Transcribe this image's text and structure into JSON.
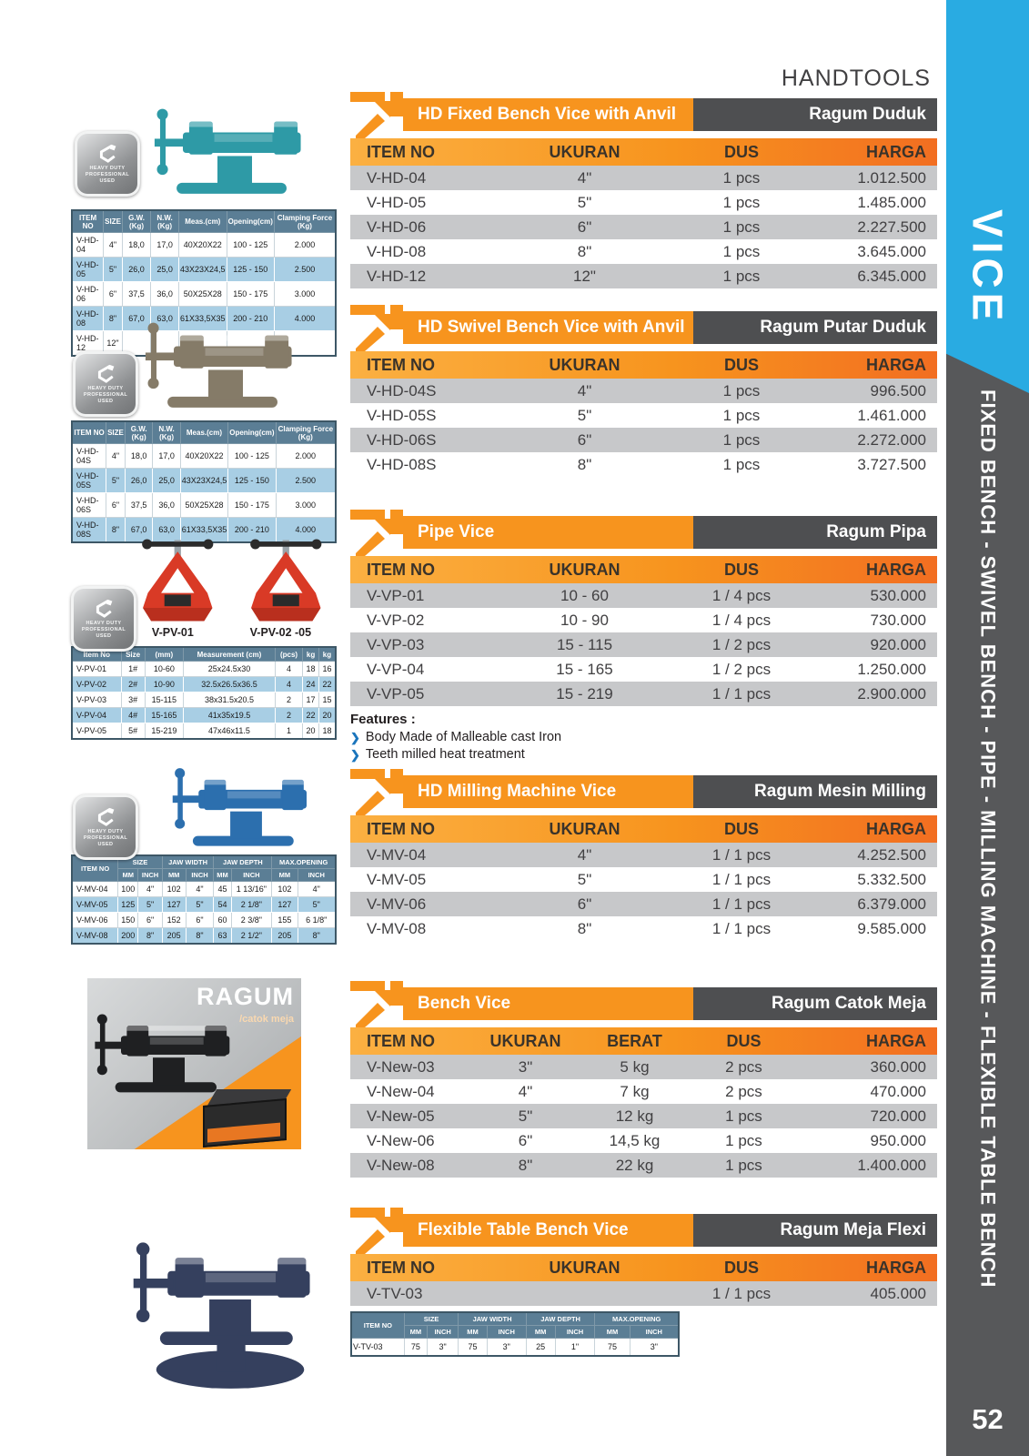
{
  "page": {
    "header": "HANDTOOLS",
    "page_number": "52"
  },
  "sidebar": {
    "category": "VICE",
    "caption": "FIXED BENCH - SWIVEL BENCH - PIPE - MILLING MACHINE - FLEXIBLE TABLE BENCH",
    "accent_color": "#29ABE2",
    "dark_color": "#58595B",
    "orange_color": "#F7941E"
  },
  "badge": {
    "lines": [
      "HEAVY DUTY",
      "PROFESSIONAL",
      "USED"
    ]
  },
  "price_tables": [
    {
      "title_en": "HD Fixed Bench Vice with Anvil",
      "title_id": "Ragum Duduk",
      "columns": [
        "ITEM NO",
        "UKURAN",
        "DUS",
        "HARGA"
      ],
      "rows": [
        [
          "V-HD-04",
          "4\"",
          "1 pcs",
          "1.012.500"
        ],
        [
          "V-HD-05",
          "5\"",
          "1 pcs",
          "1.485.000"
        ],
        [
          "V-HD-06",
          "6\"",
          "1 pcs",
          "2.227.500"
        ],
        [
          "V-HD-08",
          "8\"",
          "1 pcs",
          "3.645.000"
        ],
        [
          "V-HD-12",
          "12\"",
          "1 pcs",
          "6.345.000"
        ]
      ]
    },
    {
      "title_en": "HD Swivel Bench Vice with Anvil",
      "title_id": "Ragum Putar Duduk",
      "columns": [
        "ITEM NO",
        "UKURAN",
        "DUS",
        "HARGA"
      ],
      "rows": [
        [
          "V-HD-04S",
          "4\"",
          "1 pcs",
          "996.500"
        ],
        [
          "V-HD-05S",
          "5\"",
          "1 pcs",
          "1.461.000"
        ],
        [
          "V-HD-06S",
          "6\"",
          "1 pcs",
          "2.272.000"
        ],
        [
          "V-HD-08S",
          "8\"",
          "1 pcs",
          "3.727.500"
        ]
      ]
    },
    {
      "title_en": "Pipe Vice",
      "title_id": "Ragum Pipa",
      "columns": [
        "ITEM NO",
        "UKURAN",
        "DUS",
        "HARGA"
      ],
      "rows": [
        [
          "V-VP-01",
          "10 - 60",
          "1 / 4 pcs",
          "530.000"
        ],
        [
          "V-VP-02",
          "10 - 90",
          "1 / 4 pcs",
          "730.000"
        ],
        [
          "V-VP-03",
          "15 - 115",
          "1 / 2 pcs",
          "920.000"
        ],
        [
          "V-VP-04",
          "15 - 165",
          "1 / 2 pcs",
          "1.250.000"
        ],
        [
          "V-VP-05",
          "15 - 219",
          "1 / 1 pcs",
          "2.900.000"
        ]
      ],
      "features_label": "Features :",
      "features": [
        "Body Made of Malleable cast Iron",
        "Teeth milled heat treatment"
      ]
    },
    {
      "title_en": "HD Milling Machine Vice",
      "title_id": "Ragum Mesin Milling",
      "columns": [
        "ITEM NO",
        "UKURAN",
        "DUS",
        "HARGA"
      ],
      "rows": [
        [
          "V-MV-04",
          "4\"",
          "1 / 1 pcs",
          "4.252.500"
        ],
        [
          "V-MV-05",
          "5\"",
          "1 / 1 pcs",
          "5.332.500"
        ],
        [
          "V-MV-06",
          "6\"",
          "1 / 1 pcs",
          "6.379.000"
        ],
        [
          "V-MV-08",
          "8\"",
          "1 / 1 pcs",
          "9.585.000"
        ]
      ]
    },
    {
      "title_en": "Bench Vice",
      "title_id": "Ragum Catok Meja",
      "columns": [
        "ITEM NO",
        "UKURAN",
        "BERAT",
        "DUS",
        "HARGA"
      ],
      "rows": [
        [
          "V-New-03",
          "3\"",
          "5 kg",
          "2 pcs",
          "360.000"
        ],
        [
          "V-New-04",
          "4\"",
          "7 kg",
          "2 pcs",
          "470.000"
        ],
        [
          "V-New-05",
          "5\"",
          "12 kg",
          "1 pcs",
          "720.000"
        ],
        [
          "V-New-06",
          "6\"",
          "14,5 kg",
          "1 pcs",
          "950.000"
        ],
        [
          "V-New-08",
          "8\"",
          "22 kg",
          "1 pcs",
          "1.400.000"
        ]
      ]
    },
    {
      "title_en": "Flexible Table Bench Vice",
      "title_id": "Ragum Meja Flexi",
      "columns": [
        "ITEM NO",
        "UKURAN",
        "DUS",
        "HARGA"
      ],
      "rows": [
        [
          "V-TV-03",
          "",
          "1 / 1 pcs",
          "405.000"
        ]
      ]
    }
  ],
  "spec_hd_fixed": {
    "columns": [
      "ITEM NO",
      "SIZE",
      "G.W.(Kg)",
      "N.W.(Kg)",
      "Meas.(cm)",
      "Opening(cm)",
      "Clamping Force (Kg)"
    ],
    "rows": [
      [
        "V-HD-04",
        "4\"",
        "18,0",
        "17,0",
        "40X20X22",
        "100 - 125",
        "2.000"
      ],
      [
        "V-HD-05",
        "5\"",
        "26,0",
        "25,0",
        "43X23X24,5",
        "125 - 150",
        "2.500"
      ],
      [
        "V-HD-06",
        "6\"",
        "37,5",
        "36,0",
        "50X25X28",
        "150 - 175",
        "3.000"
      ],
      [
        "V-HD-08",
        "8\"",
        "67,0",
        "63,0",
        "61X33,5X35",
        "200 - 210",
        "4.000"
      ],
      [
        "V-HD-12",
        "12\"",
        "",
        "",
        "",
        "",
        ""
      ]
    ]
  },
  "spec_hd_swivel": {
    "columns": [
      "ITEM NO",
      "SIZE",
      "G.W.(Kg)",
      "N.W.(Kg)",
      "Meas.(cm)",
      "Opening(cm)",
      "Clamping Force (Kg)"
    ],
    "rows": [
      [
        "V-HD-04S",
        "4\"",
        "18,0",
        "17,0",
        "40X20X22",
        "100 - 125",
        "2.000"
      ],
      [
        "V-HD-05S",
        "5\"",
        "26,0",
        "25,0",
        "43X23X24,5",
        "125 - 150",
        "2.500"
      ],
      [
        "V-HD-06S",
        "6\"",
        "37,5",
        "36,0",
        "50X25X28",
        "150 - 175",
        "3.000"
      ],
      [
        "V-HD-08S",
        "8\"",
        "67,0",
        "63,0",
        "61X33,5X35",
        "200 - 210",
        "4.000"
      ]
    ]
  },
  "spec_pipe": {
    "columns": [
      "Item No",
      "Size",
      "(mm)",
      "Measurement (cm)",
      "(pcs)",
      "kg",
      "kg"
    ],
    "rows": [
      [
        "V-PV-01",
        "1#",
        "10-60",
        "25x24.5x30",
        "4",
        "18",
        "16"
      ],
      [
        "V-PV-02",
        "2#",
        "10-90",
        "32.5x26.5x36.5",
        "4",
        "24",
        "22"
      ],
      [
        "V-PV-03",
        "3#",
        "15-115",
        "38x31.5x20.5",
        "2",
        "17",
        "15"
      ],
      [
        "V-PV-04",
        "4#",
        "15-165",
        "41x35x19.5",
        "2",
        "22",
        "20"
      ],
      [
        "V-PV-05",
        "5#",
        "15-219",
        "47x46x11.5",
        "1",
        "20",
        "18"
      ]
    ]
  },
  "pipe_captions": {
    "left": "V-PV-01",
    "right": "V-PV-02 -05"
  },
  "spec_milling": {
    "item_label": "ITEM NO",
    "groups": [
      "SIZE",
      "JAW WIDTH",
      "JAW DEPTH",
      "MAX.OPENING"
    ],
    "sub": [
      "MM",
      "INCH"
    ],
    "rows": [
      [
        "V-MV-04",
        "100",
        "4\"",
        "102",
        "4\"",
        "45",
        "1 13/16\"",
        "102",
        "4\""
      ],
      [
        "V-MV-05",
        "125",
        "5\"",
        "127",
        "5\"",
        "54",
        "2 1/8\"",
        "127",
        "5\""
      ],
      [
        "V-MV-06",
        "150",
        "6\"",
        "152",
        "6\"",
        "60",
        "2 3/8\"",
        "155",
        "6 1/8\""
      ],
      [
        "V-MV-08",
        "200",
        "8\"",
        "205",
        "8\"",
        "63",
        "2 1/2\"",
        "205",
        "8\""
      ]
    ]
  },
  "spec_tv": {
    "item_label": "ITEM NO",
    "groups": [
      "SIZE",
      "JAW WIDTH",
      "JAW DEPTH",
      "MAX.OPENING"
    ],
    "sub": [
      "MM",
      "INCH"
    ],
    "rows": [
      [
        "V-TV-03",
        "75",
        "3\"",
        "75",
        "3\"",
        "25",
        "1\"",
        "75",
        "3\""
      ]
    ]
  },
  "ragum_photo": {
    "brand": "RAGUM",
    "subtitle": "/catok meja"
  }
}
